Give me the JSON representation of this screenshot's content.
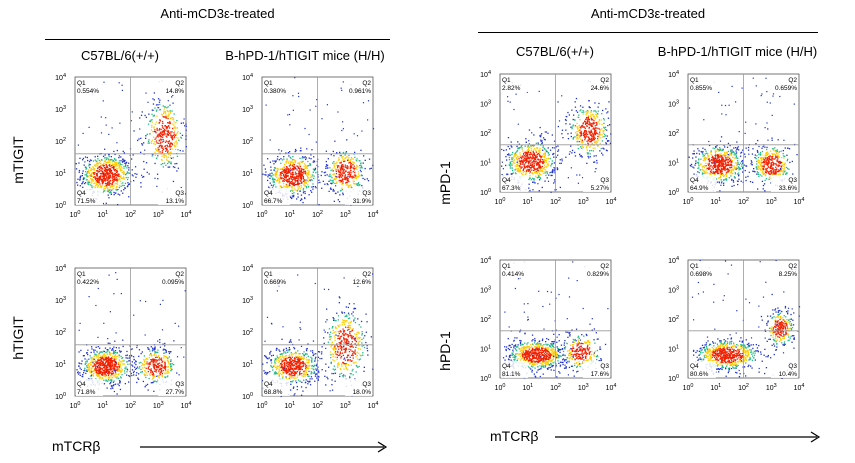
{
  "chart_data": [
    {
      "type": "scatter",
      "subtype": "flow-cytometry-density-dot-plots",
      "group_title": "Anti-mCD3ε-treated",
      "column_titles": [
        "C57BL/6(+/+)",
        "B-hPD-1/hTIGIT mice (H/H)"
      ],
      "row_labels": [
        "mTIGIT",
        "hTIGIT"
      ],
      "xlabel": "mTCRβ",
      "axis_ticks": [
        "10^0",
        "10^1",
        "10^2",
        "10^3",
        "10^4"
      ],
      "xlim": [
        1,
        10000
      ],
      "ylim": [
        1,
        10000
      ],
      "log_scale": true,
      "panels": [
        {
          "row": 0,
          "col": 0,
          "gates": {
            "Q1": "0.554%",
            "Q2": "14.8%",
            "Q3": "13.1%",
            "Q4": "71.5%"
          }
        },
        {
          "row": 0,
          "col": 1,
          "gates": {
            "Q1": "0.380%",
            "Q2": "0.961%",
            "Q3": "31.9%",
            "Q4": "66.7%"
          }
        },
        {
          "row": 1,
          "col": 0,
          "gates": {
            "Q1": "0.422%",
            "Q2": "0.095%",
            "Q3": "27.7%",
            "Q4": "71.8%"
          }
        },
        {
          "row": 1,
          "col": 1,
          "gates": {
            "Q1": "0.669%",
            "Q2": "12.6%",
            "Q3": "18.0%",
            "Q4": "68.8%"
          }
        }
      ]
    },
    {
      "type": "scatter",
      "subtype": "flow-cytometry-density-dot-plots",
      "group_title": "Anti-mCD3ε-treated",
      "column_titles": [
        "C57BL/6(+/+)",
        "B-hPD-1/hTIGIT mice (H/H)"
      ],
      "row_labels": [
        "mPD-1",
        "hPD-1"
      ],
      "xlabel": "mTCRβ",
      "axis_ticks": [
        "10^0",
        "10^1",
        "10^2",
        "10^3",
        "10^4"
      ],
      "xlim": [
        1,
        10000
      ],
      "ylim": [
        1,
        10000
      ],
      "log_scale": true,
      "panels": [
        {
          "row": 0,
          "col": 0,
          "gates": {
            "Q1": "2.82%",
            "Q2": "24.6%",
            "Q3": "5.27%",
            "Q4": "67.3%"
          }
        },
        {
          "row": 0,
          "col": 1,
          "gates": {
            "Q1": "0.855%",
            "Q2": "0.659%",
            "Q3": "33.6%",
            "Q4": "64.9%"
          }
        },
        {
          "row": 1,
          "col": 0,
          "gates": {
            "Q1": "0.414%",
            "Q2": "0.829%",
            "Q3": "17.6%",
            "Q4": "81.1%"
          }
        },
        {
          "row": 1,
          "col": 1,
          "gates": {
            "Q1": "0.698%",
            "Q2": "8.25%",
            "Q3": "10.4%",
            "Q4": "80.6%"
          }
        }
      ]
    }
  ],
  "colors": {
    "density_low": "#2233cc",
    "density_mid": "#22bb88",
    "density_high": "#ffcc00",
    "density_peak": "#ee2200",
    "gate_lines": "#999999"
  }
}
